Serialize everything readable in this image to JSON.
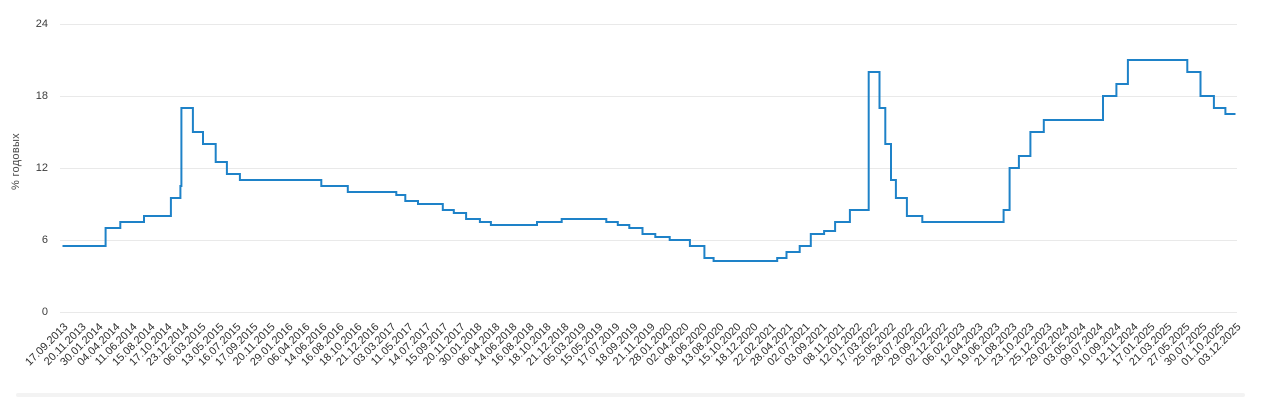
{
  "page": {
    "background": "#ffffff"
  },
  "chart_data": {
    "type": "line",
    "subtype": "step-after",
    "title": "",
    "xlabel": "",
    "ylabel": "% годовых",
    "ylim": [
      0,
      24
    ],
    "y_ticks": [
      0,
      6,
      12,
      18,
      24
    ],
    "grid": "horizontal-only",
    "legend": "none",
    "line_color": "#1e82c8",
    "grid_color": "#e9e9e9",
    "x_range": [
      "17.09.2013",
      "03.12.2025"
    ],
    "x_tick_labels": [
      "17.09.2013",
      "20.11.2013",
      "30.01.2014",
      "04.04.2014",
      "11.06.2014",
      "15.08.2014",
      "17.10.2014",
      "23.12.2014",
      "06.03.2015",
      "13.05.2015",
      "16.07.2015",
      "17.09.2015",
      "20.11.2015",
      "29.01.2016",
      "06.04.2016",
      "14.06.2016",
      "16.08.2016",
      "18.10.2016",
      "21.12.2016",
      "03.03.2017",
      "11.05.2017",
      "14.07.2017",
      "15.09.2017",
      "20.11.2017",
      "30.01.2018",
      "06.04.2018",
      "14.06.2018",
      "16.08.2018",
      "18.10.2018",
      "21.12.2018",
      "05.03.2019",
      "15.05.2019",
      "17.07.2019",
      "18.09.2019",
      "21.11.2019",
      "28.01.2020",
      "02.04.2020",
      "08.06.2020",
      "13.08.2020",
      "15.10.2020",
      "18.12.2020",
      "22.02.2021",
      "28.04.2021",
      "02.07.2021",
      "03.09.2021",
      "08.11.2021",
      "12.01.2022",
      "17.03.2022",
      "25.05.2022",
      "28.07.2022",
      "29.09.2022",
      "02.12.2022",
      "06.02.2023",
      "12.04.2023",
      "19.06.2023",
      "21.08.2023",
      "23.10.2023",
      "25.12.2023",
      "29.02.2024",
      "03.05.2024",
      "09.07.2024",
      "10.09.2024",
      "12.11.2024",
      "17.01.2025",
      "21.03.2025",
      "27.05.2025",
      "30.07.2025",
      "01.10.2025",
      "03.12.2025"
    ],
    "series": [
      {
        "unit": "% годовых",
        "points_note": "step change points read from chart: [date, rate]",
        "points": [
          [
            "17.09.2013",
            5.5
          ],
          [
            "03.03.2014",
            7.0
          ],
          [
            "28.04.2014",
            7.5
          ],
          [
            "28.07.2014",
            8.0
          ],
          [
            "05.11.2014",
            9.5
          ],
          [
            "12.12.2014",
            10.5
          ],
          [
            "16.12.2014",
            17.0
          ],
          [
            "02.02.2015",
            15.0
          ],
          [
            "16.03.2015",
            14.0
          ],
          [
            "05.05.2015",
            12.5
          ],
          [
            "16.06.2015",
            11.5
          ],
          [
            "03.08.2015",
            11.0
          ],
          [
            "14.06.2016",
            10.5
          ],
          [
            "19.09.2016",
            10.0
          ],
          [
            "27.03.2017",
            9.75
          ],
          [
            "02.05.2017",
            9.25
          ],
          [
            "19.06.2017",
            9.0
          ],
          [
            "18.09.2017",
            8.5
          ],
          [
            "30.10.2017",
            8.25
          ],
          [
            "18.12.2017",
            7.75
          ],
          [
            "12.02.2018",
            7.5
          ],
          [
            "26.03.2018",
            7.25
          ],
          [
            "17.09.2018",
            7.5
          ],
          [
            "17.12.2018",
            7.75
          ],
          [
            "17.06.2019",
            7.5
          ],
          [
            "29.07.2019",
            7.25
          ],
          [
            "09.09.2019",
            7.0
          ],
          [
            "28.10.2019",
            6.5
          ],
          [
            "16.12.2019",
            6.25
          ],
          [
            "10.02.2020",
            6.0
          ],
          [
            "27.04.2020",
            5.5
          ],
          [
            "22.06.2020",
            4.5
          ],
          [
            "27.07.2020",
            4.25
          ],
          [
            "22.03.2021",
            4.5
          ],
          [
            "26.04.2021",
            5.0
          ],
          [
            "15.06.2021",
            5.5
          ],
          [
            "26.07.2021",
            6.5
          ],
          [
            "13.09.2021",
            6.75
          ],
          [
            "25.10.2021",
            7.5
          ],
          [
            "20.12.2021",
            8.5
          ],
          [
            "28.02.2022",
            20.0
          ],
          [
            "11.04.2022",
            17.0
          ],
          [
            "04.05.2022",
            14.0
          ],
          [
            "27.05.2022",
            11.0
          ],
          [
            "14.06.2022",
            9.5
          ],
          [
            "25.07.2022",
            8.0
          ],
          [
            "19.09.2022",
            7.5
          ],
          [
            "24.07.2023",
            8.5
          ],
          [
            "15.08.2023",
            12.0
          ],
          [
            "18.09.2023",
            13.0
          ],
          [
            "30.10.2023",
            15.0
          ],
          [
            "18.12.2023",
            16.0
          ],
          [
            "29.07.2024",
            18.0
          ],
          [
            "16.09.2024",
            19.0
          ],
          [
            "28.10.2024",
            21.0
          ],
          [
            "09.06.2025",
            20.0
          ],
          [
            "28.07.2025",
            18.0
          ],
          [
            "15.09.2025",
            17.0
          ],
          [
            "27.10.2025",
            16.5
          ]
        ]
      }
    ]
  },
  "footer": {
    "divider_color": "#f3f3f3"
  }
}
